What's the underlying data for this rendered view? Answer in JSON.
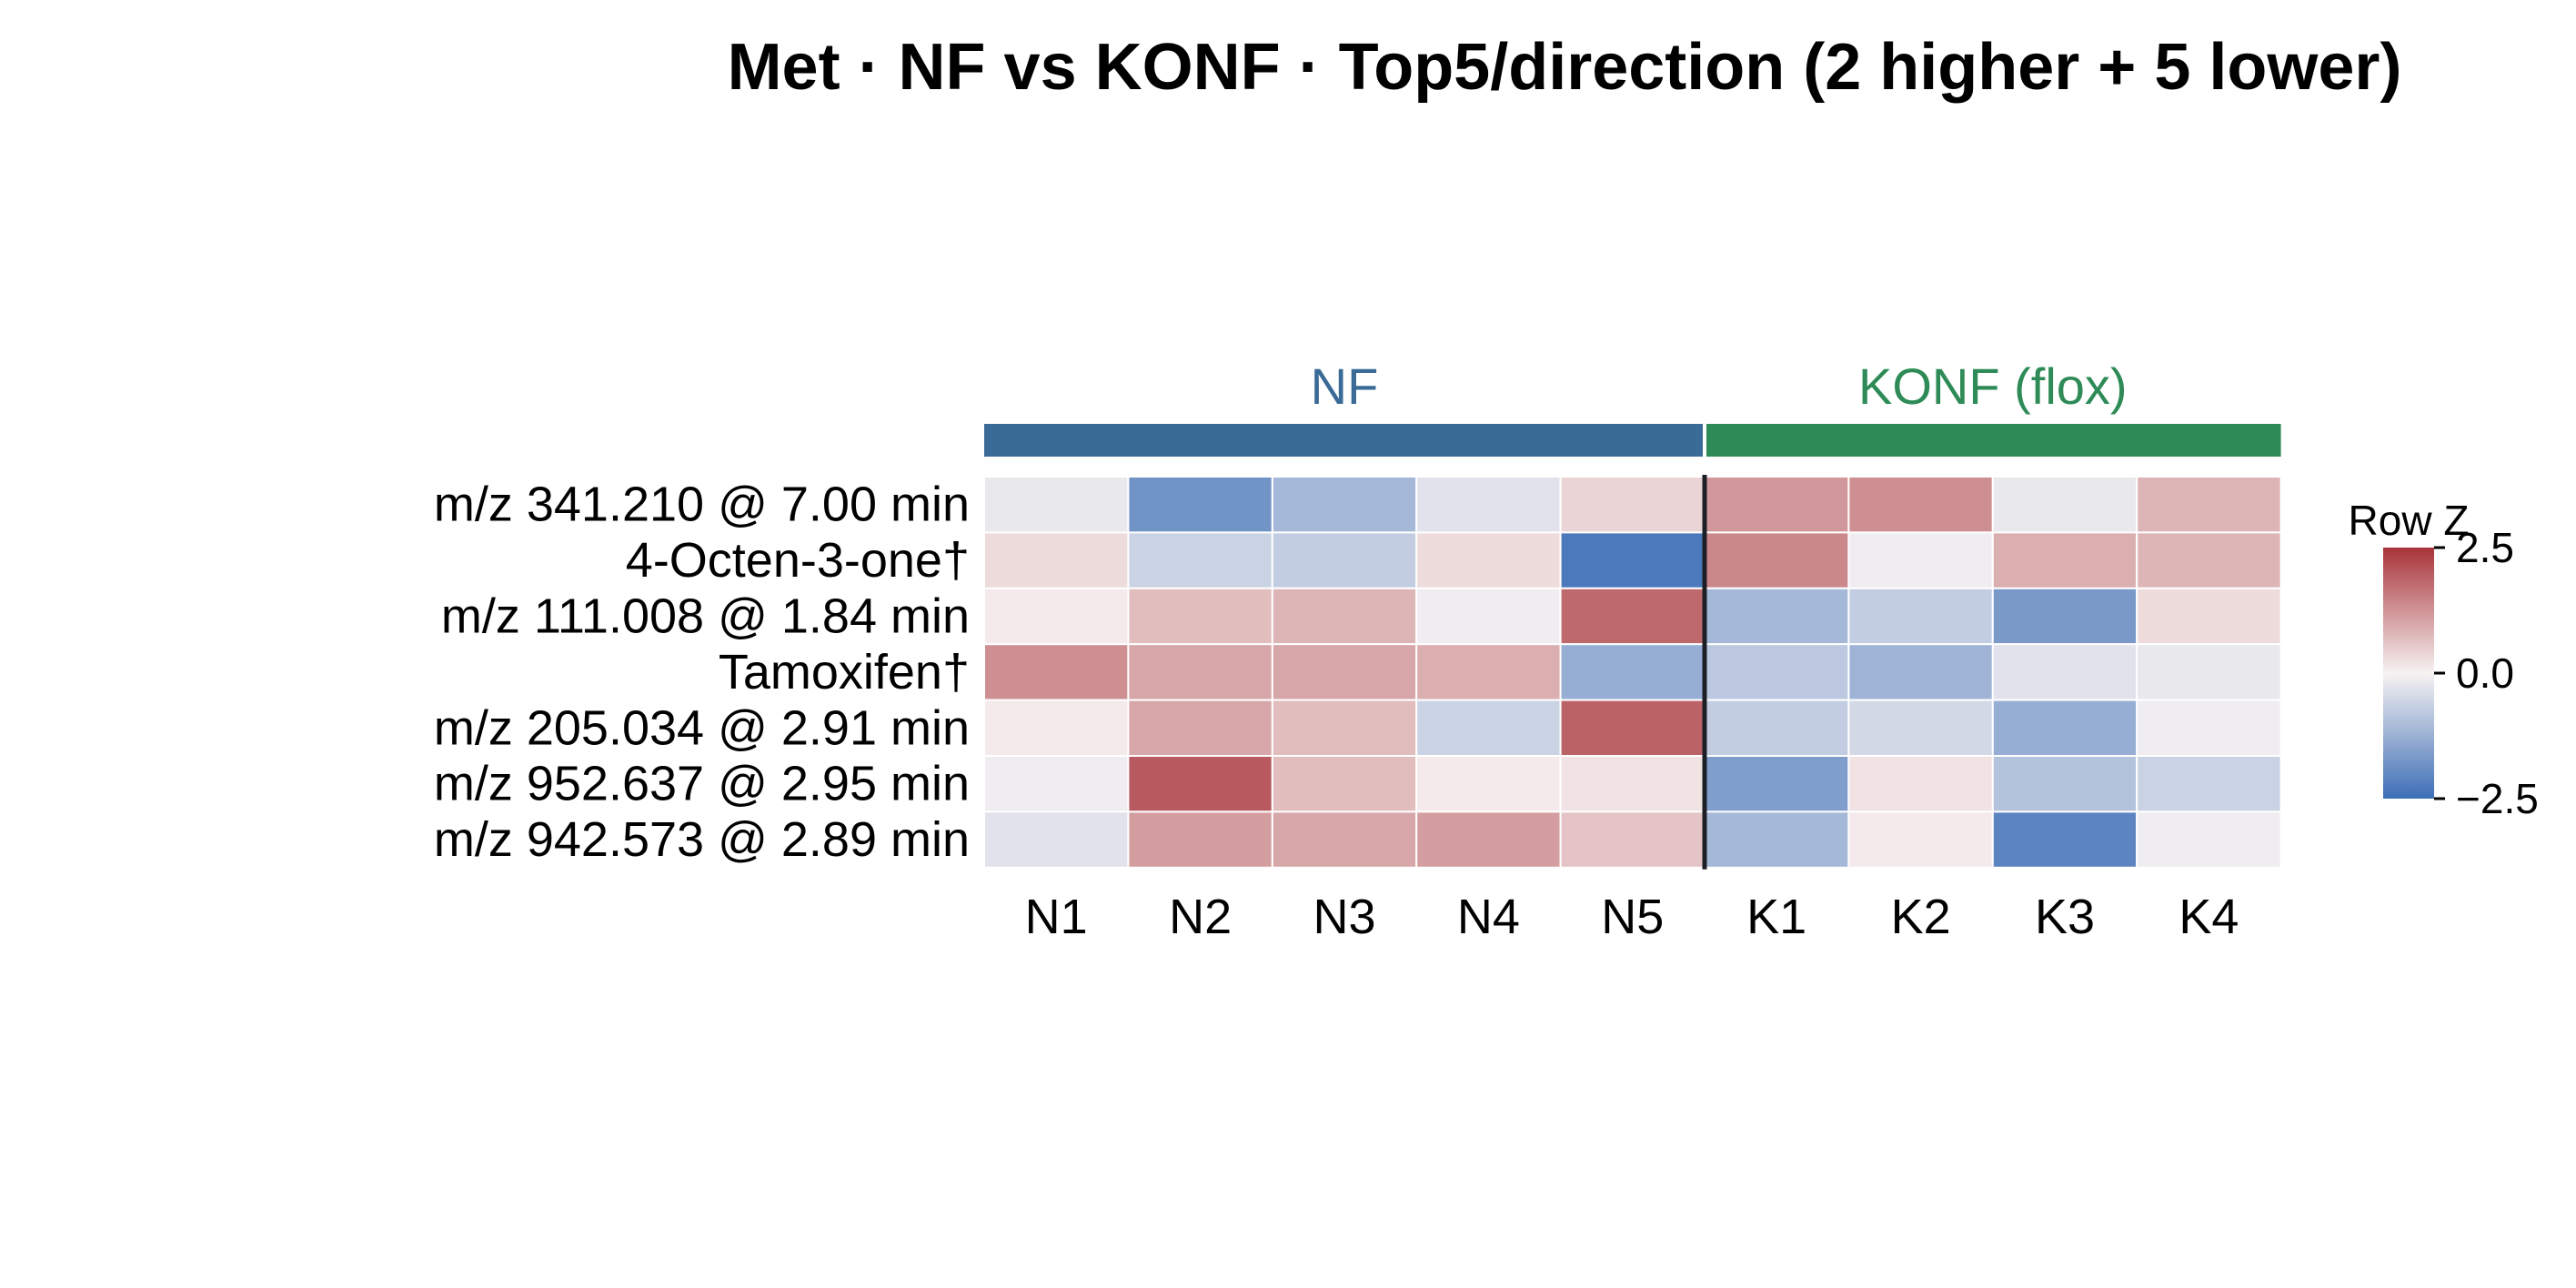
{
  "chart_data": {
    "type": "heatmap",
    "title": "Met · NF vs KONF · Top5/direction (2 higher + 5 lower)",
    "rows": [
      "m/z 341.210 @ 7.00 min",
      "4-Octen-3-one†",
      "m/z 111.008 @ 1.84 min",
      "Tamoxifen†",
      "m/z 205.034 @ 2.91 min",
      "m/z 952.637 @ 2.95 min",
      "m/z 942.573 @ 2.89 min"
    ],
    "columns": [
      "N1",
      "N2",
      "N3",
      "N4",
      "N5",
      "K1",
      "K2",
      "K3",
      "K4"
    ],
    "groups": [
      {
        "name": "NF",
        "start": 0,
        "count": 5,
        "color": "#3a6a96"
      },
      {
        "name": "KONF (flox)",
        "start": 5,
        "count": 4,
        "color": "#2e8b57"
      }
    ],
    "values": [
      [
        -0.2,
        -1.8,
        -1.1,
        -0.3,
        0.4,
        1.2,
        1.3,
        -0.2,
        0.8
      ],
      [
        0.3,
        -0.6,
        -0.7,
        0.3,
        -2.3,
        1.4,
        -0.1,
        0.9,
        0.8
      ],
      [
        0.1,
        0.7,
        0.8,
        -0.1,
        1.8,
        -1.1,
        -0.7,
        -1.7,
        0.3
      ],
      [
        1.3,
        1.0,
        1.0,
        0.9,
        -1.3,
        -0.8,
        -1.2,
        -0.3,
        -0.2
      ],
      [
        0.1,
        1.0,
        0.7,
        -0.6,
        1.9,
        -0.7,
        -0.5,
        -1.3,
        -0.1
      ],
      [
        -0.1,
        2.0,
        0.7,
        0.1,
        0.2,
        -1.6,
        0.2,
        -0.9,
        -0.6
      ],
      [
        -0.3,
        1.1,
        1.0,
        1.1,
        0.6,
        -1.1,
        0.1,
        -2.1,
        -0.1
      ]
    ],
    "colorbar": {
      "title": "Row Z",
      "range": [
        -2.5,
        2.5
      ],
      "ticks": [
        2.5,
        0.0,
        -2.5
      ],
      "tick_labels": [
        "2.5",
        "0.0",
        "−2.5"
      ],
      "low_color": "#3d6fb6",
      "mid_color": "#f7f2f2",
      "high_color": "#a8343a"
    },
    "separator_after_column": 4
  }
}
